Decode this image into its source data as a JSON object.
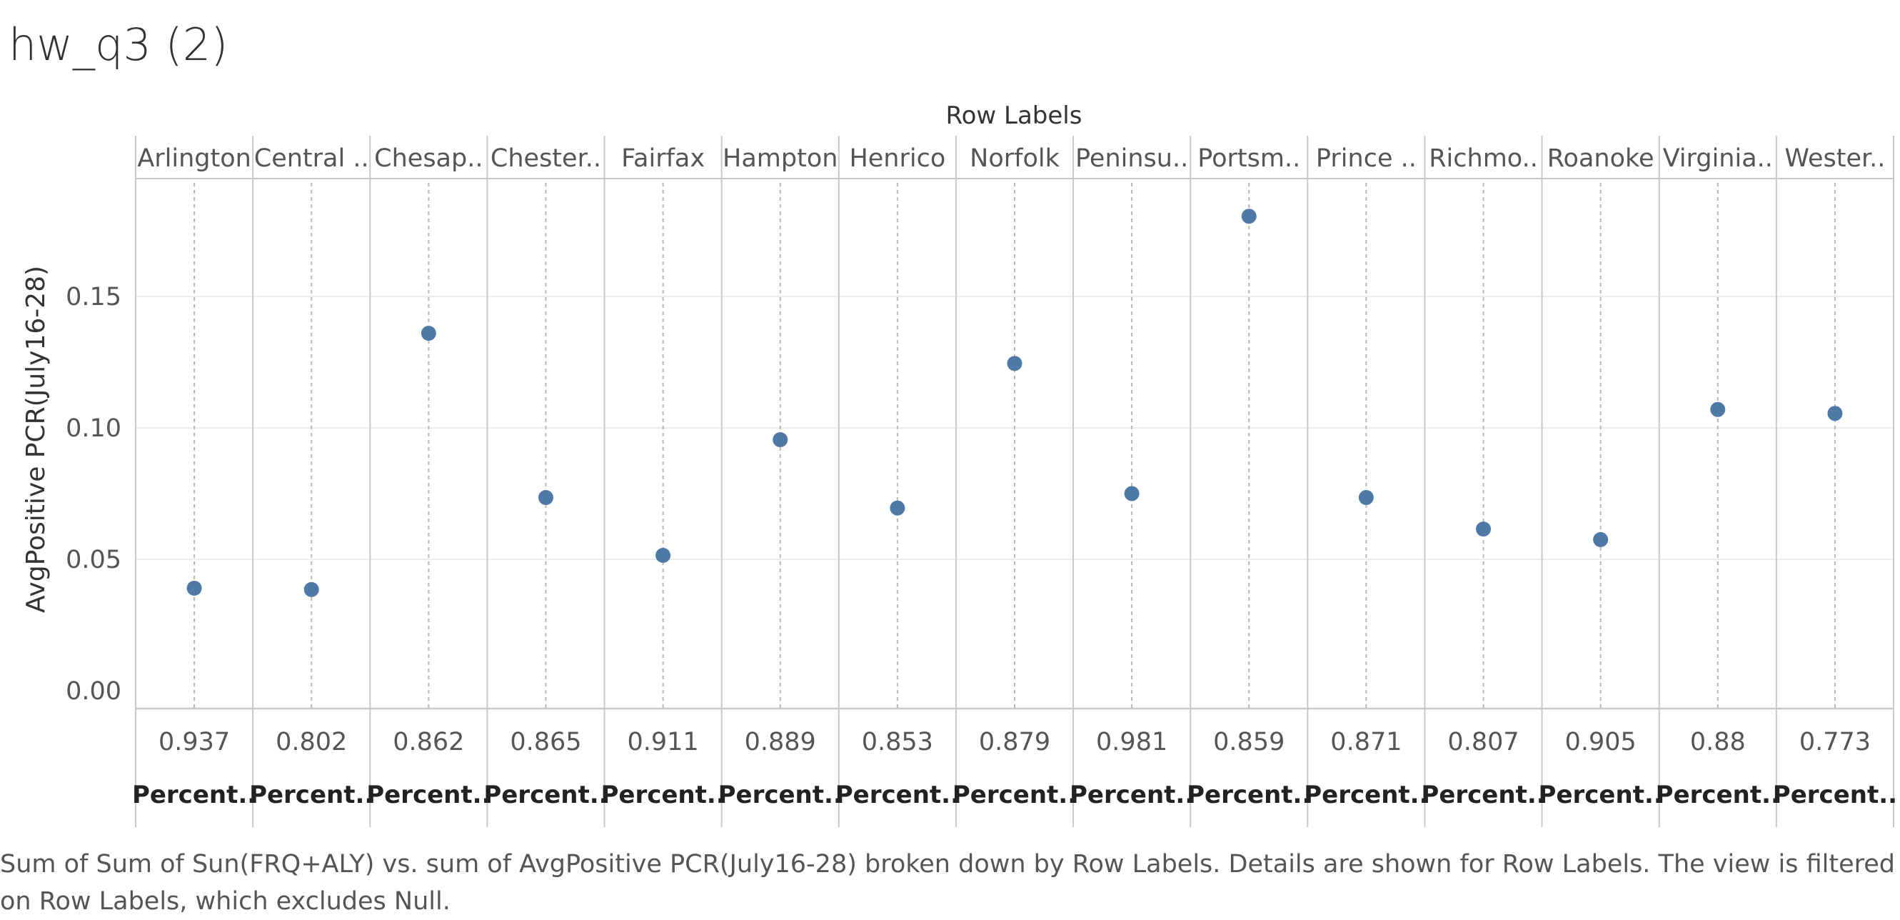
{
  "title": "hw_q3 (2)",
  "caption": "Sum of Sum of Sun(FRQ+ALY) vs. sum of AvgPositive PCR(July16-28) broken down by Row Labels.  Details are shown for Row Labels. The view is filtered on Row Labels, which excludes Null.",
  "colors": {
    "dot": "#4e79a7",
    "axis": "#c8c8c8",
    "grid": "#ececec",
    "text": "#555555"
  },
  "chart_data": {
    "type": "scatter",
    "column_header": "Row Labels",
    "ylabel": "AvgPositive PCR(July16-28)",
    "ylim": [
      0,
      0.19
    ],
    "yticks": [
      "0.00",
      "0.05",
      "0.10",
      "0.15"
    ],
    "ytick_values": [
      0,
      0.05,
      0.1,
      0.15
    ],
    "grid": true,
    "xaxis_label": "Percent..",
    "panels": [
      {
        "label": "Arlington",
        "x": "0.937",
        "y": 0.039
      },
      {
        "label": "Central ..",
        "x": "0.802",
        "y": 0.0385
      },
      {
        "label": "Chesap..",
        "x": "0.862",
        "y": 0.136
      },
      {
        "label": "Chester..",
        "x": "0.865",
        "y": 0.0735
      },
      {
        "label": "Fairfax",
        "x": "0.911",
        "y": 0.0515
      },
      {
        "label": "Hampton",
        "x": "0.889",
        "y": 0.0955
      },
      {
        "label": "Henrico",
        "x": "0.853",
        "y": 0.0695
      },
      {
        "label": "Norfolk",
        "x": "0.879",
        "y": 0.1245
      },
      {
        "label": "Peninsu..",
        "x": "0.981",
        "y": 0.075
      },
      {
        "label": "Portsm..",
        "x": "0.859",
        "y": 0.1805
      },
      {
        "label": "Prince ..",
        "x": "0.871",
        "y": 0.0735
      },
      {
        "label": "Richmo..",
        "x": "0.807",
        "y": 0.0615
      },
      {
        "label": "Roanoke",
        "x": "0.905",
        "y": 0.0575
      },
      {
        "label": "Virginia..",
        "x": "0.88",
        "y": 0.107
      },
      {
        "label": "Wester..",
        "x": "0.773",
        "y": 0.1055
      }
    ]
  }
}
